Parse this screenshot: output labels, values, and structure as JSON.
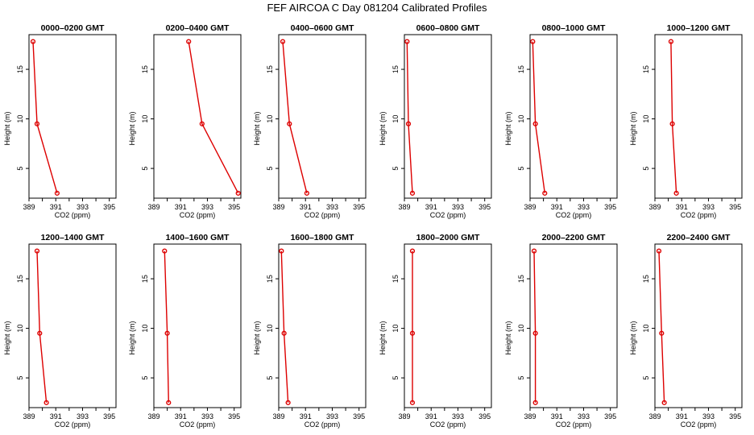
{
  "figure": {
    "title": "FEF AIRCOA C  Day 081204  Calibrated Profiles"
  },
  "colors": {
    "series": "#dd0000",
    "axes": "#000000",
    "background": "#ffffff"
  },
  "chart_data": [
    {
      "type": "line",
      "title": "0000–0200 GMT",
      "xlabel": "CO2 (ppm)",
      "ylabel": "Height (m)",
      "xlim": [
        389,
        395.5
      ],
      "ylim": [
        2,
        18.5
      ],
      "xticks": [
        "389",
        "391",
        "393",
        "395"
      ],
      "yticks": [
        "5",
        "10",
        "15"
      ],
      "x": [
        389.3,
        389.6,
        391.1
      ],
      "y": [
        17.8,
        9.5,
        2.5
      ]
    },
    {
      "type": "line",
      "title": "0200–0400 GMT",
      "xlabel": "CO2 (ppm)",
      "ylabel": "Height (m)",
      "xlim": [
        389,
        395.5
      ],
      "ylim": [
        2,
        18.5
      ],
      "xticks": [
        "389",
        "391",
        "393",
        "395"
      ],
      "yticks": [
        "5",
        "10",
        "15"
      ],
      "x": [
        391.6,
        392.6,
        395.3
      ],
      "y": [
        17.8,
        9.5,
        2.5
      ]
    },
    {
      "type": "line",
      "title": "0400–0600 GMT",
      "xlabel": "CO2 (ppm)",
      "ylabel": "Height (m)",
      "xlim": [
        389,
        395.5
      ],
      "ylim": [
        2,
        18.5
      ],
      "xticks": [
        "389",
        "391",
        "393",
        "395"
      ],
      "yticks": [
        "5",
        "10",
        "15"
      ],
      "x": [
        389.3,
        389.8,
        391.1
      ],
      "y": [
        17.8,
        9.5,
        2.5
      ]
    },
    {
      "type": "line",
      "title": "0600–0800 GMT",
      "xlabel": "CO2 (ppm)",
      "ylabel": "Height (m)",
      "xlim": [
        389,
        395.5
      ],
      "ylim": [
        2,
        18.5
      ],
      "xticks": [
        "389",
        "391",
        "393",
        "395"
      ],
      "yticks": [
        "5",
        "10",
        "15"
      ],
      "x": [
        389.2,
        389.3,
        389.6
      ],
      "y": [
        17.8,
        9.5,
        2.5
      ]
    },
    {
      "type": "line",
      "title": "0800–1000 GMT",
      "xlabel": "CO2 (ppm)",
      "ylabel": "Height (m)",
      "xlim": [
        389,
        395.5
      ],
      "ylim": [
        2,
        18.5
      ],
      "xticks": [
        "389",
        "391",
        "393",
        "395"
      ],
      "yticks": [
        "5",
        "10",
        "15"
      ],
      "x": [
        389.2,
        389.4,
        390.1
      ],
      "y": [
        17.8,
        9.5,
        2.5
      ]
    },
    {
      "type": "line",
      "title": "1000–1200 GMT",
      "xlabel": "CO2 (ppm)",
      "ylabel": "Height (m)",
      "xlim": [
        389,
        395.5
      ],
      "ylim": [
        2,
        18.5
      ],
      "xticks": [
        "389",
        "391",
        "393",
        "395"
      ],
      "yticks": [
        "5",
        "10",
        "15"
      ],
      "x": [
        390.2,
        390.3,
        390.6
      ],
      "y": [
        17.8,
        9.5,
        2.5
      ]
    },
    {
      "type": "line",
      "title": "1200–1400 GMT",
      "xlabel": "CO2 (ppm)",
      "ylabel": "Height (m)",
      "xlim": [
        389,
        395.5
      ],
      "ylim": [
        2,
        18.5
      ],
      "xticks": [
        "389",
        "391",
        "393",
        "395"
      ],
      "yticks": [
        "5",
        "10",
        "15"
      ],
      "x": [
        389.6,
        389.8,
        390.3
      ],
      "y": [
        17.8,
        9.5,
        2.5
      ]
    },
    {
      "type": "line",
      "title": "1400–1600 GMT",
      "xlabel": "CO2 (ppm)",
      "ylabel": "Height (m)",
      "xlim": [
        389,
        395.5
      ],
      "ylim": [
        2,
        18.5
      ],
      "xticks": [
        "389",
        "391",
        "393",
        "395"
      ],
      "yticks": [
        "5",
        "10",
        "15"
      ],
      "x": [
        389.8,
        390.0,
        390.1
      ],
      "y": [
        17.8,
        9.5,
        2.5
      ]
    },
    {
      "type": "line",
      "title": "1600–1800 GMT",
      "xlabel": "CO2 (ppm)",
      "ylabel": "Height (m)",
      "xlim": [
        389,
        395.5
      ],
      "ylim": [
        2,
        18.5
      ],
      "xticks": [
        "389",
        "391",
        "393",
        "395"
      ],
      "yticks": [
        "5",
        "10",
        "15"
      ],
      "x": [
        389.2,
        389.4,
        389.7
      ],
      "y": [
        17.8,
        9.5,
        2.5
      ]
    },
    {
      "type": "line",
      "title": "1800–2000 GMT",
      "xlabel": "CO2 (ppm)",
      "ylabel": "Height (m)",
      "xlim": [
        389,
        395.5
      ],
      "ylim": [
        2,
        18.5
      ],
      "xticks": [
        "389",
        "391",
        "393",
        "395"
      ],
      "yticks": [
        "5",
        "10",
        "15"
      ],
      "x": [
        389.6,
        389.6,
        389.6
      ],
      "y": [
        17.8,
        9.5,
        2.5
      ]
    },
    {
      "type": "line",
      "title": "2000–2200 GMT",
      "xlabel": "CO2 (ppm)",
      "ylabel": "Height (m)",
      "xlim": [
        389,
        395.5
      ],
      "ylim": [
        2,
        18.5
      ],
      "xticks": [
        "389",
        "391",
        "393",
        "395"
      ],
      "yticks": [
        "5",
        "10",
        "15"
      ],
      "x": [
        389.3,
        389.4,
        389.4
      ],
      "y": [
        17.8,
        9.5,
        2.5
      ]
    },
    {
      "type": "line",
      "title": "2200–2400 GMT",
      "xlabel": "CO2 (ppm)",
      "ylabel": "Height (m)",
      "xlim": [
        389,
        395.5
      ],
      "ylim": [
        2,
        18.5
      ],
      "xticks": [
        "389",
        "391",
        "393",
        "395"
      ],
      "yticks": [
        "5",
        "10",
        "15"
      ],
      "x": [
        389.3,
        389.5,
        389.7
      ],
      "y": [
        17.8,
        9.5,
        2.5
      ]
    }
  ]
}
